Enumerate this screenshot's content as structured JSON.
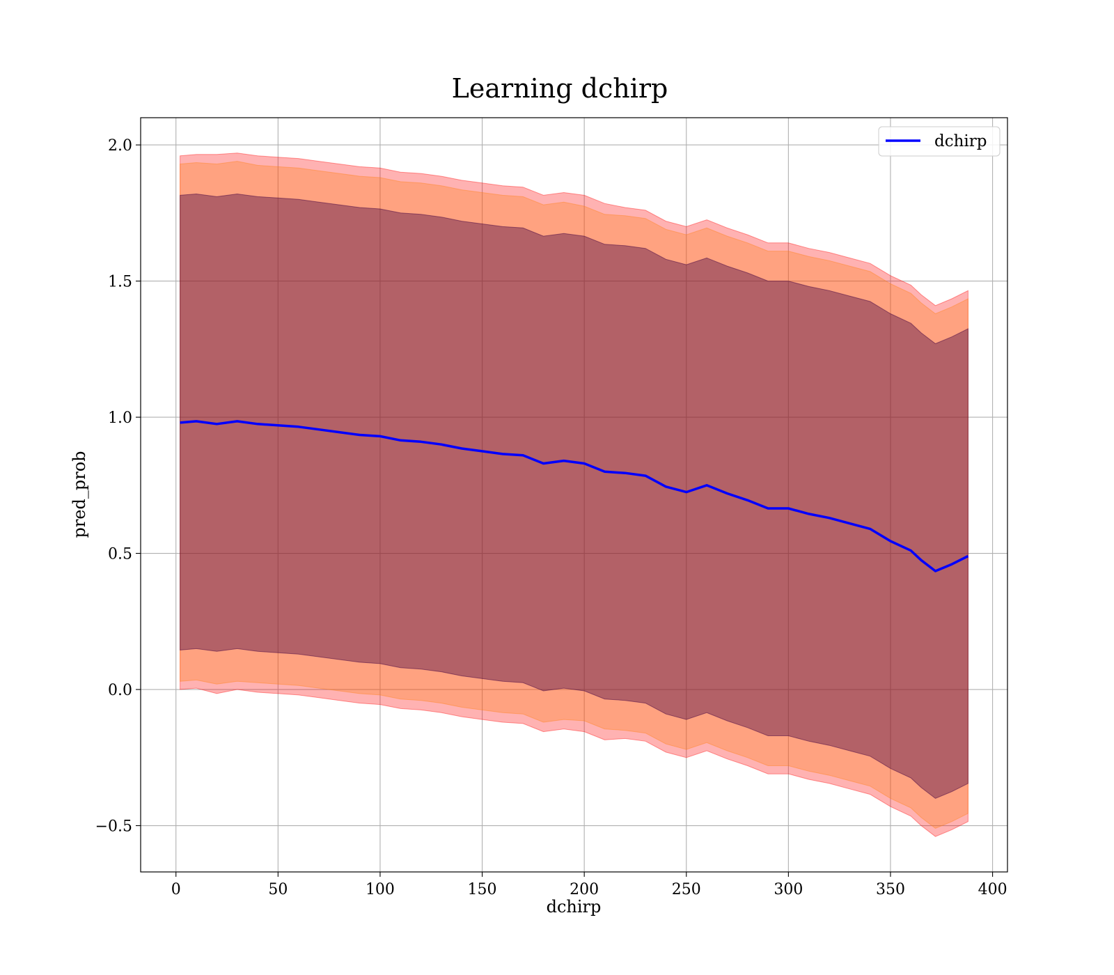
{
  "chart_data": {
    "type": "line",
    "title": "Learning dchirp",
    "xlabel": "dchirp",
    "ylabel": "pred_prob",
    "xlim": [
      -17.3,
      407.3
    ],
    "ylim": [
      -0.67,
      2.1
    ],
    "x_ticks": [
      0,
      50,
      100,
      150,
      200,
      250,
      300,
      350,
      400
    ],
    "x_tick_labels": [
      "0",
      "50",
      "100",
      "150",
      "200",
      "250",
      "300",
      "350",
      "400"
    ],
    "y_ticks": [
      -0.5,
      0.0,
      0.5,
      1.0,
      1.5,
      2.0
    ],
    "y_tick_labels": [
      "−0.5",
      "0.0",
      "0.5",
      "1.0",
      "1.5",
      "2.0"
    ],
    "grid": true,
    "legend": {
      "position": "top-right",
      "entries": [
        "dchirp"
      ]
    },
    "x": [
      2,
      10,
      20,
      30,
      40,
      50,
      60,
      70,
      80,
      90,
      100,
      110,
      120,
      130,
      140,
      150,
      160,
      170,
      180,
      190,
      200,
      210,
      220,
      230,
      240,
      250,
      260,
      270,
      280,
      290,
      300,
      310,
      320,
      330,
      340,
      350,
      360,
      365,
      372,
      380,
      388
    ],
    "series": [
      {
        "name": "dchirp",
        "color": "#0000ff",
        "values": [
          0.98,
          0.985,
          0.975,
          0.985,
          0.975,
          0.97,
          0.965,
          0.955,
          0.945,
          0.935,
          0.93,
          0.915,
          0.91,
          0.9,
          0.885,
          0.875,
          0.865,
          0.86,
          0.83,
          0.84,
          0.83,
          0.8,
          0.795,
          0.785,
          0.745,
          0.725,
          0.75,
          0.72,
          0.695,
          0.665,
          0.665,
          0.645,
          0.63,
          0.61,
          0.59,
          0.545,
          0.51,
          0.475,
          0.435,
          0.46,
          0.49
        ]
      }
    ],
    "bands": [
      {
        "level": "outer",
        "color": "#ff0000",
        "opacity": 0.3,
        "upper_offset": [
          0.98,
          0.98,
          0.99,
          0.985,
          0.985,
          0.985,
          0.985,
          0.985,
          0.985,
          0.985,
          0.985,
          0.985,
          0.985,
          0.985,
          0.985,
          0.985,
          0.985,
          0.985,
          0.985,
          0.985,
          0.985,
          0.985,
          0.975,
          0.975,
          0.975,
          0.975,
          0.975,
          0.975,
          0.975,
          0.975,
          0.975,
          0.975,
          0.975,
          0.975,
          0.975,
          0.975,
          0.975,
          0.975,
          0.975,
          0.975,
          0.975
        ]
      },
      {
        "level": "middle",
        "color": "#ff7f0e",
        "opacity": 0.3,
        "upper_offset": [
          0.95,
          0.95,
          0.955,
          0.955,
          0.95,
          0.95,
          0.95,
          0.95,
          0.95,
          0.95,
          0.95,
          0.95,
          0.95,
          0.95,
          0.95,
          0.95,
          0.95,
          0.95,
          0.95,
          0.95,
          0.945,
          0.945,
          0.945,
          0.945,
          0.945,
          0.945,
          0.945,
          0.945,
          0.945,
          0.945,
          0.945,
          0.945,
          0.945,
          0.945,
          0.945,
          0.945,
          0.945,
          0.945,
          0.945,
          0.945,
          0.945
        ]
      },
      {
        "level": "inner",
        "color": "#400040",
        "opacity": 0.4,
        "upper_offset": [
          0.835,
          0.835,
          0.835,
          0.835,
          0.835,
          0.835,
          0.835,
          0.835,
          0.835,
          0.835,
          0.835,
          0.835,
          0.835,
          0.835,
          0.835,
          0.835,
          0.835,
          0.835,
          0.835,
          0.835,
          0.835,
          0.835,
          0.835,
          0.835,
          0.835,
          0.835,
          0.835,
          0.835,
          0.835,
          0.835,
          0.835,
          0.835,
          0.835,
          0.835,
          0.835,
          0.835,
          0.835,
          0.835,
          0.835,
          0.835,
          0.835
        ]
      }
    ]
  }
}
